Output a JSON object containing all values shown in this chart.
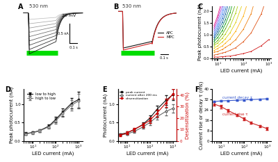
{
  "panel_A": {
    "green_bar_label": "530 nm",
    "n_traces": 9
  },
  "panel_B": {
    "green_bar_label": "530 nm",
    "scale_bar_text": "0.1 s",
    "legend": [
      "APC",
      "MPC"
    ],
    "colors": [
      "#111111",
      "#cc2222"
    ]
  },
  "panel_C": {
    "xlabel": "LED current (mA)",
    "ylabel": "Peak photocurrent (nA)",
    "xlim": [
      6,
      1200
    ],
    "ylim": [
      0,
      2.2
    ],
    "n_lines": 16,
    "colors": [
      "#cc0000",
      "#dd4400",
      "#ee7700",
      "#ffaa00",
      "#ddcc00",
      "#aacc00",
      "#55aa00",
      "#009900",
      "#007755",
      "#005599",
      "#2266cc",
      "#4488ee",
      "#7799ff",
      "#aa66dd",
      "#cc44bb",
      "#ee3388"
    ]
  },
  "panel_D": {
    "xlabel": "LED current (mA)",
    "ylabel": "Peak photocurrent (nA)",
    "xlim": [
      4,
      1500
    ],
    "ylim": [
      0.0,
      1.4
    ],
    "x": [
      5,
      10,
      20,
      50,
      100,
      200,
      500,
      1000
    ],
    "y_low_high": [
      0.2,
      0.23,
      0.28,
      0.4,
      0.58,
      0.78,
      1.02,
      1.12
    ],
    "y_high_low": [
      0.19,
      0.22,
      0.27,
      0.38,
      0.54,
      0.74,
      0.97,
      1.08
    ],
    "err_low_high": [
      0.03,
      0.03,
      0.04,
      0.05,
      0.07,
      0.1,
      0.15,
      0.22
    ],
    "err_high_low": [
      0.03,
      0.03,
      0.04,
      0.05,
      0.07,
      0.09,
      0.14,
      0.2
    ],
    "legend": [
      "low to high",
      "high to low"
    ],
    "color_low": "#111111",
    "color_high": "#777777"
  },
  "panel_E": {
    "xlabel": "LED current (mA)",
    "ylabel_left": "Photocurrent (nA)",
    "ylabel_right": "Desensitization (%)",
    "xlim": [
      4,
      1500
    ],
    "ylim_left": [
      0.0,
      1.4
    ],
    "ylim_right": [
      0,
      45
    ],
    "x": [
      5,
      10,
      20,
      50,
      100,
      200,
      500,
      1000
    ],
    "y_peak": [
      0.18,
      0.22,
      0.3,
      0.45,
      0.62,
      0.85,
      1.1,
      1.25
    ],
    "y_after200": [
      0.16,
      0.19,
      0.25,
      0.38,
      0.5,
      0.65,
      0.8,
      0.88
    ],
    "y_desens": [
      5,
      7,
      10,
      14,
      18,
      24,
      33,
      41
    ],
    "err_peak": [
      0.025,
      0.03,
      0.04,
      0.06,
      0.08,
      0.1,
      0.13,
      0.15
    ],
    "err_after200": [
      0.02,
      0.025,
      0.035,
      0.05,
      0.065,
      0.08,
      0.1,
      0.12
    ],
    "err_desens": [
      1.0,
      1.2,
      1.5,
      1.8,
      2.2,
      2.8,
      3.5,
      4.0
    ],
    "legend": [
      "peak current",
      "current after 200 ms",
      "desensitization"
    ],
    "color_peak": "#111111",
    "color_after": "#666666",
    "color_desens": "#cc0000"
  },
  "panel_F": {
    "xlabel": "LED current (mA)",
    "ylabel": "Current rise or decay τ (ms)",
    "xlim": [
      4,
      1500
    ],
    "ylim": [
      0,
      40
    ],
    "x": [
      5,
      10,
      20,
      50,
      100,
      200,
      500,
      1000
    ],
    "y_decay": [
      30.5,
      31.0,
      31.2,
      31.5,
      31.8,
      32.0,
      32.3,
      32.6
    ],
    "y_rise": [
      28.5,
      26.5,
      23.5,
      20.0,
      17.0,
      14.0,
      11.5,
      9.5
    ],
    "err_decay": [
      0.7,
      0.6,
      0.6,
      0.5,
      0.5,
      0.5,
      0.6,
      0.7
    ],
    "err_rise": [
      1.4,
      1.2,
      1.1,
      1.0,
      0.9,
      0.9,
      0.9,
      1.0
    ],
    "label_decay": "current decay τ",
    "label_rise": "current rise τ",
    "color_decay": "#3355cc",
    "color_rise": "#cc2222"
  }
}
